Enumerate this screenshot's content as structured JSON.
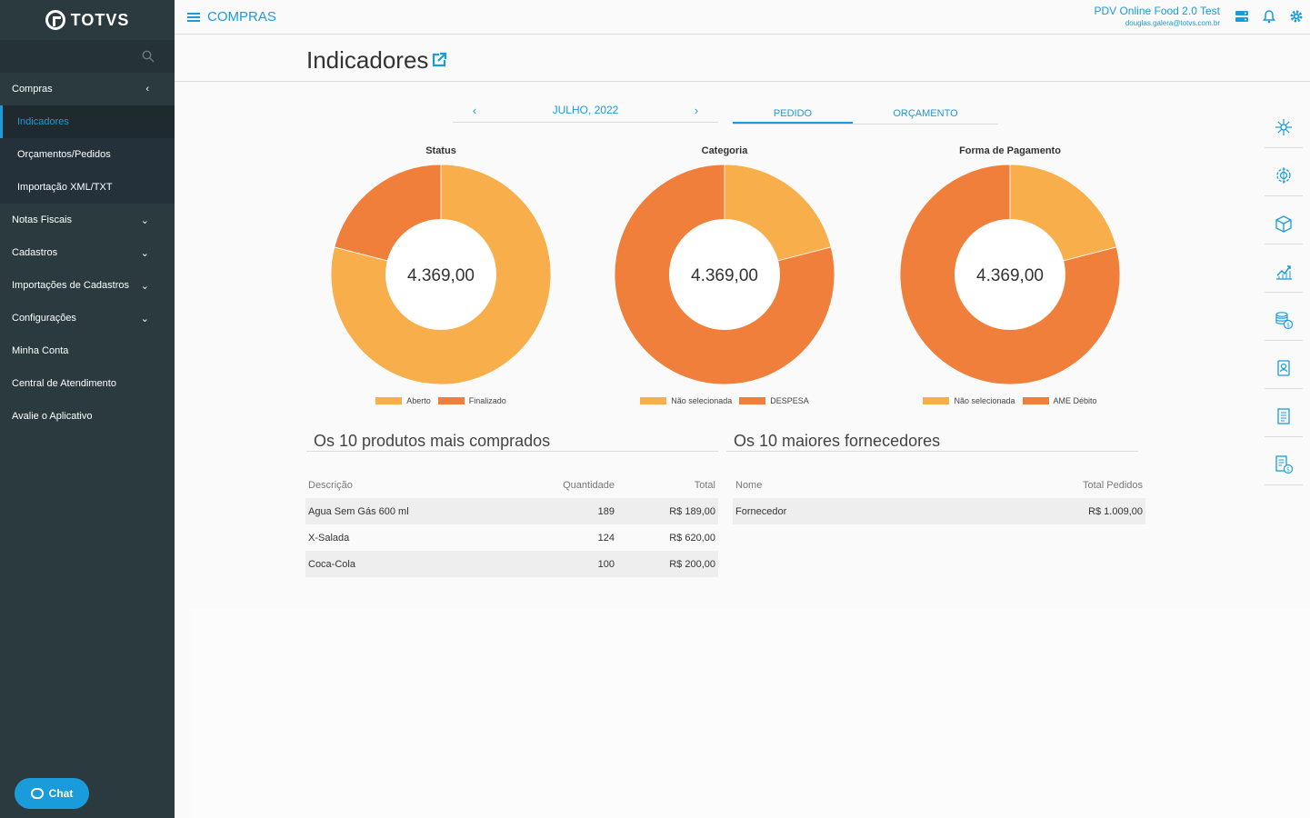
{
  "brand": {
    "name": "TOTVS"
  },
  "sidebar": {
    "items": [
      {
        "label": "Compras",
        "chevron": "‹"
      },
      {
        "label": "Notas Fiscais",
        "chevron": "⌄"
      },
      {
        "label": "Cadastros",
        "chevron": "⌄"
      },
      {
        "label": "Importações de Cadastros",
        "chevron": "⌄"
      },
      {
        "label": "Configurações",
        "chevron": "⌄"
      },
      {
        "label": "Minha Conta"
      },
      {
        "label": "Central de Atendimento"
      },
      {
        "label": "Avalie o Aplicativo"
      }
    ],
    "subitems": [
      {
        "label": "Indicadores",
        "active": true
      },
      {
        "label": "Orçamentos/Pedidos"
      },
      {
        "label": "Importação XML/TXT"
      }
    ],
    "chat_label": "Chat"
  },
  "header": {
    "module": "COMPRAS",
    "company": "PDV Online Food 2.0 Test",
    "email": "douglas.galera@totvs.com.br"
  },
  "page": {
    "title": "Indicadores"
  },
  "period": {
    "label": "JULHO, 2022",
    "prev": "‹",
    "next": "›"
  },
  "tabs": [
    {
      "label": "PEDIDO",
      "active": true
    },
    {
      "label": "ORÇAMENTO"
    }
  ],
  "colors": {
    "accent": "#1a9bdc",
    "light_orange": "#f7ae4b",
    "dark_orange": "#f07f3c"
  },
  "chart_data": [
    {
      "type": "pie",
      "title": "Status",
      "center_label": "4.369,00",
      "series": [
        {
          "name": "Aberto",
          "value": 0.79,
          "color": "#f7ae4b"
        },
        {
          "name": "Finalizado",
          "value": 0.21,
          "color": "#f07f3c"
        }
      ]
    },
    {
      "type": "pie",
      "title": "Categoria",
      "center_label": "4.369,00",
      "series": [
        {
          "name": "Não selecionada",
          "value": 0.21,
          "color": "#f7ae4b"
        },
        {
          "name": "DESPESA",
          "value": 0.79,
          "color": "#f07f3c"
        }
      ]
    },
    {
      "type": "pie",
      "title": "Forma de Pagamento",
      "center_label": "4.369,00",
      "series": [
        {
          "name": "Não selecionada",
          "value": 0.21,
          "color": "#f7ae4b"
        },
        {
          "name": "AME Débito",
          "value": 0.79,
          "color": "#f07f3c"
        }
      ]
    }
  ],
  "products": {
    "title": "Os 10 produtos mais comprados",
    "headers": {
      "desc": "Descrição",
      "qty": "Quantidade",
      "total": "Total"
    },
    "rows": [
      {
        "desc": "Agua Sem Gás 600 ml",
        "qty": "189",
        "total": "R$ 189,00"
      },
      {
        "desc": "X-Salada",
        "qty": "124",
        "total": "R$ 620,00"
      },
      {
        "desc": "Coca-Cola",
        "qty": "100",
        "total": "R$ 200,00"
      }
    ]
  },
  "suppliers": {
    "title": "Os 10 maiores fornecedores",
    "headers": {
      "name": "Nome",
      "total": "Total Pedidos"
    },
    "rows": [
      {
        "name": "Fornecedor",
        "total": "R$ 1.009,00"
      }
    ]
  },
  "rail_icons": [
    "network-icon",
    "gear-globe-icon",
    "box-icon",
    "trend-chart-icon",
    "coins-icon",
    "id-badge-icon",
    "document-icon",
    "invoice-icon"
  ]
}
